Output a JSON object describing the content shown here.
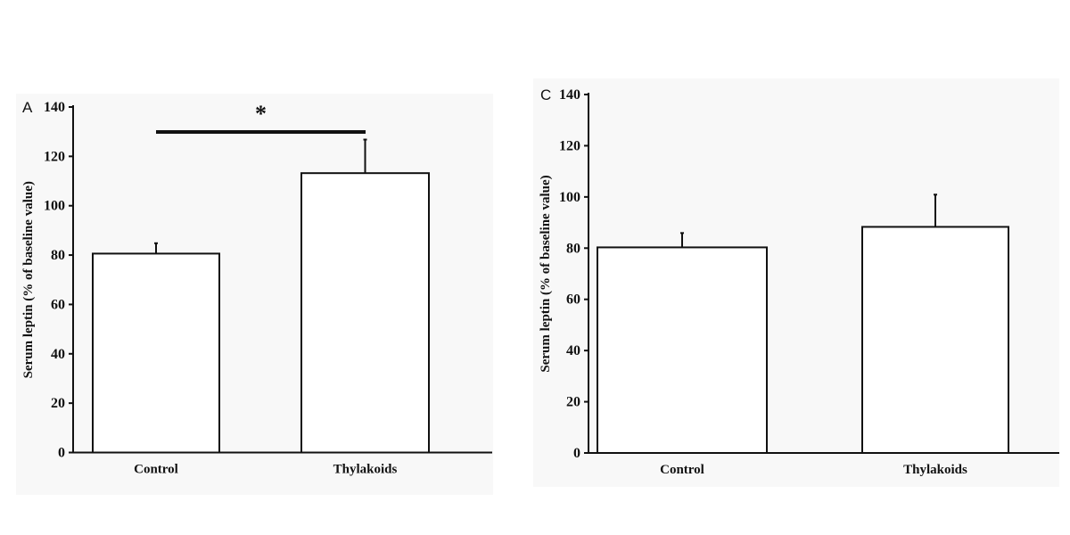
{
  "chart_data": [
    {
      "type": "bar",
      "panel_label": "A",
      "categories": [
        "Control",
        "Thylakoids"
      ],
      "values": [
        80.6,
        113.2
      ],
      "error_upper": [
        84.8,
        126.8
      ],
      "ylabel": "Serum leptin (% of baseline value)",
      "xlabel": "",
      "ylim": [
        0,
        140
      ],
      "yticks": [
        0,
        20,
        40,
        60,
        80,
        100,
        120,
        140
      ],
      "grid": false,
      "bar_fill": "#ffffff",
      "significance": {
        "between": [
          "Control",
          "Thylakoids"
        ],
        "marker": "*"
      }
    },
    {
      "type": "bar",
      "panel_label": "C",
      "categories": [
        "Control",
        "Thylakoids"
      ],
      "values": [
        80.3,
        88.3
      ],
      "error_upper": [
        85.9,
        100.9
      ],
      "ylabel": "Serum leptin (% of baseline value)",
      "xlabel": "",
      "ylim": [
        0,
        140
      ],
      "yticks": [
        0,
        20,
        40,
        60,
        80,
        100,
        120,
        140
      ],
      "grid": false,
      "bar_fill": "#ffffff"
    }
  ]
}
